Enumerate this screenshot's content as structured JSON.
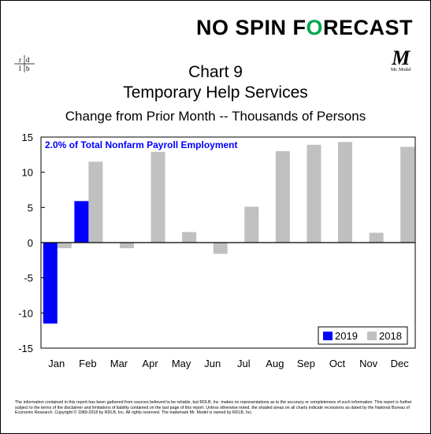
{
  "brand": {
    "part1": "NO SPIN ",
    "part2": "F",
    "part3": "O",
    "part4": "RECAST"
  },
  "logo_text": "rdlb",
  "mr_model": {
    "mark": "M",
    "sub": "Mr. Model"
  },
  "title_line1": "Chart 9",
  "title_line2": "Temporary Help Services",
  "subtitle": "Change from Prior Month -- Thousands of Persons",
  "annotation": "2.0% of Total Nonfarm Payroll Employment",
  "footer": "The information contained in this report has been gathered from sources believed to be reliable, but RDLB, Inc. makes no representations as to the accuracy or completeness of such information. This report is further subject to the terms of the disclaimer and limitations of liability contained on the last page of this report. Unless otherwise noted, the shaded areas on all charts indicate recessions as dated by the National Bureau of Economic Research. Copyright © 1989-2018 by RDLB, Inc. All rights reserved. The trademark Mr. Model is owned by RDLB, Inc.",
  "colors": {
    "s2019": "#0000ff",
    "s2018": "#c0c0c0",
    "brand_o": "#00a651",
    "annotation": "#0000ff"
  },
  "chart_data": {
    "type": "bar",
    "categories": [
      "Jan",
      "Feb",
      "Mar",
      "Apr",
      "May",
      "Jun",
      "Jul",
      "Aug",
      "Sep",
      "Oct",
      "Nov",
      "Dec"
    ],
    "series": [
      {
        "name": "2019",
        "values": [
          -11.5,
          5.9,
          null,
          null,
          null,
          null,
          null,
          null,
          null,
          null,
          null,
          null
        ]
      },
      {
        "name": "2018",
        "values": [
          -0.8,
          11.5,
          -0.8,
          12.9,
          1.5,
          -1.6,
          5.1,
          13.0,
          13.9,
          14.3,
          1.4,
          13.6
        ]
      }
    ],
    "ylim": [
      -15,
      15
    ],
    "yticks": [
      15,
      10,
      5,
      0,
      -5,
      -10,
      -15
    ],
    "legend": "bottom-right",
    "grid": false
  }
}
